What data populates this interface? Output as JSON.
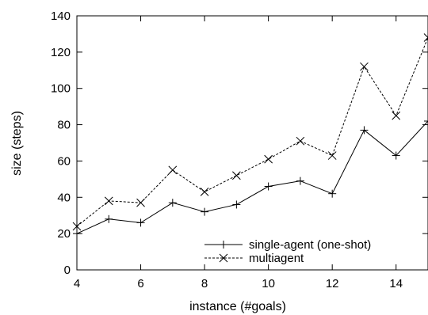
{
  "chart_data": {
    "type": "line",
    "xlabel": "instance (#goals)",
    "ylabel": "size (steps)",
    "xlim": [
      4,
      15
    ],
    "ylim": [
      0,
      140
    ],
    "x_ticks": [
      4,
      6,
      8,
      10,
      12,
      14
    ],
    "y_ticks": [
      0,
      20,
      40,
      60,
      80,
      100,
      120,
      140
    ],
    "grid": false,
    "legend_position": "bottom-right",
    "x": [
      4,
      5,
      6,
      7,
      8,
      9,
      10,
      11,
      12,
      13,
      14,
      15
    ],
    "series": [
      {
        "name": "single-agent (one-shot)",
        "marker": "plus",
        "line_style": "solid",
        "values": [
          20,
          28,
          26,
          37,
          32,
          36,
          46,
          49,
          42,
          77,
          63,
          82
        ]
      },
      {
        "name": "multiagent",
        "marker": "cross",
        "line_style": "dashed",
        "values": [
          24,
          38,
          37,
          55,
          43,
          52,
          61,
          71,
          63,
          112,
          85,
          128
        ]
      }
    ]
  }
}
